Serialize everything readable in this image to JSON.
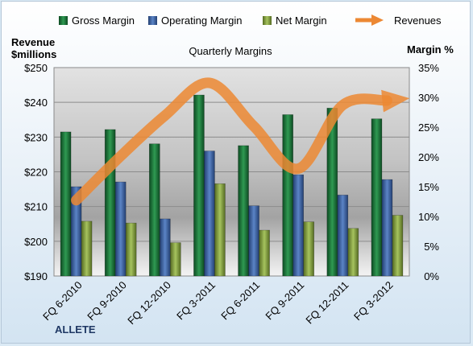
{
  "chart_data": {
    "type": "bar",
    "title": "Quarterly Margins",
    "categories": [
      "FQ 6-2010",
      "FQ 9-2010",
      "FQ 12-2010",
      "FQ 3-2011",
      "FQ 6-2011",
      "FQ 9-2011",
      "FQ 12-2011",
      "FQ 3-2012"
    ],
    "series": [
      {
        "name": "Gross Margin",
        "type": "bar",
        "axis": "right",
        "color": "#1e7a3c",
        "values": [
          24.2,
          24.6,
          22.2,
          30.4,
          21.9,
          27.1,
          28.2,
          26.4
        ]
      },
      {
        "name": "Operating Margin",
        "type": "bar",
        "axis": "right",
        "color": "#3f66a8",
        "values": [
          15.0,
          15.8,
          9.6,
          21.0,
          11.8,
          17.0,
          13.6,
          16.2
        ]
      },
      {
        "name": "Net Margin",
        "type": "bar",
        "axis": "right",
        "color": "#8aac45",
        "values": [
          9.2,
          8.9,
          5.6,
          15.5,
          7.7,
          9.1,
          8.0,
          10.2
        ]
      },
      {
        "name": "Revenues",
        "type": "line",
        "axis": "left",
        "color": "#ec8833",
        "values": [
          211.8,
          224.5,
          236.2,
          245.6,
          233.1,
          220.9,
          239.2,
          240.5
        ]
      }
    ],
    "y_left": {
      "label_line1": "Revenue",
      "label_line2": "$millions",
      "min": 190,
      "max": 250,
      "ticks": [
        "$190",
        "$200",
        "$210",
        "$220",
        "$230",
        "$240",
        "$250"
      ]
    },
    "y_right": {
      "label": "Margin %",
      "min": 0,
      "max": 35,
      "ticks": [
        "0%",
        "5%",
        "10%",
        "15%",
        "20%",
        "25%",
        "30%",
        "35%"
      ]
    },
    "legend_position": "top",
    "grid": true
  },
  "company": "ALLETE"
}
